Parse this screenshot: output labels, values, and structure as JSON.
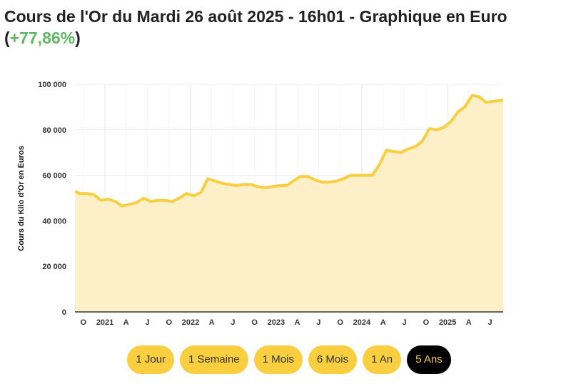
{
  "header": {
    "title": "Cours de l'Or du Mardi 26 août 2025 - 16h01 - Graphique en Euro",
    "change_open": "(",
    "change": "+77,86%",
    "change_close": ")"
  },
  "chart_data": {
    "type": "area",
    "title": "",
    "xlabel": "",
    "ylabel": "Cours du Kilo d'Or en Euros",
    "ylim": [
      0,
      100000
    ],
    "xlim": [
      "2020-08-26",
      "2025-08-26"
    ],
    "grid": true,
    "colors": {
      "line": "#f9cf40",
      "fill": "#fdf0c8"
    },
    "y_ticks": [
      "0",
      "20 000",
      "40 000",
      "60 000",
      "80 000",
      "100 000"
    ],
    "x_ticks": [
      {
        "label": "O",
        "date": "2020-10-01"
      },
      {
        "label": "2021",
        "date": "2021-01-01"
      },
      {
        "label": "A",
        "date": "2021-04-01"
      },
      {
        "label": "J",
        "date": "2021-07-01"
      },
      {
        "label": "O",
        "date": "2021-10-01"
      },
      {
        "label": "2022",
        "date": "2022-01-01"
      },
      {
        "label": "A",
        "date": "2022-04-01"
      },
      {
        "label": "J",
        "date": "2022-07-01"
      },
      {
        "label": "O",
        "date": "2022-10-01"
      },
      {
        "label": "2023",
        "date": "2023-01-01"
      },
      {
        "label": "A",
        "date": "2023-04-01"
      },
      {
        "label": "J",
        "date": "2023-07-01"
      },
      {
        "label": "O",
        "date": "2023-10-01"
      },
      {
        "label": "2024",
        "date": "2024-01-01"
      },
      {
        "label": "A",
        "date": "2024-04-01"
      },
      {
        "label": "J",
        "date": "2024-07-01"
      },
      {
        "label": "O",
        "date": "2024-10-01"
      },
      {
        "label": "2025",
        "date": "2025-01-01"
      },
      {
        "label": "A",
        "date": "2025-04-01"
      },
      {
        "label": "J",
        "date": "2025-07-01"
      }
    ],
    "series": [
      {
        "x": [
          "2020-08",
          "2020-09",
          "2020-10",
          "2020-11",
          "2020-12",
          "2021-01",
          "2021-02",
          "2021-03",
          "2021-04",
          "2021-05",
          "2021-06",
          "2021-07",
          "2021-08",
          "2021-09",
          "2021-10",
          "2021-11",
          "2021-12",
          "2022-01",
          "2022-02",
          "2022-03",
          "2022-04",
          "2022-05",
          "2022-06",
          "2022-07",
          "2022-08",
          "2022-09",
          "2022-10",
          "2022-11",
          "2022-12",
          "2023-01",
          "2023-02",
          "2023-03",
          "2023-04",
          "2023-05",
          "2023-06",
          "2023-07",
          "2023-08",
          "2023-09",
          "2023-10",
          "2023-11",
          "2023-12",
          "2024-01",
          "2024-02",
          "2024-03",
          "2024-04",
          "2024-05",
          "2024-06",
          "2024-07",
          "2024-08",
          "2024-09",
          "2024-10",
          "2024-11",
          "2024-12",
          "2025-01",
          "2025-02",
          "2025-03",
          "2025-04",
          "2025-05",
          "2025-06",
          "2025-07",
          "2025-08"
        ],
        "values": [
          53000,
          52000,
          52000,
          51500,
          49000,
          49500,
          48500,
          46500,
          47200,
          48000,
          50000,
          48500,
          49000,
          49000,
          48500,
          50000,
          52000,
          51000,
          52500,
          58500,
          57500,
          56500,
          56000,
          55500,
          56000,
          56000,
          55000,
          54500,
          55000,
          55500,
          55500,
          57500,
          59500,
          59500,
          58000,
          57000,
          57000,
          57500,
          58500,
          60000,
          60000,
          60000,
          60000,
          64500,
          71000,
          70500,
          70000,
          71500,
          72500,
          75000,
          80500,
          80000,
          81000,
          83500,
          88000,
          90000,
          95000,
          94500,
          92000,
          92500,
          93000
        ]
      }
    ]
  },
  "range_buttons": [
    {
      "label": "1 Jour"
    },
    {
      "label": "1 Semaine"
    },
    {
      "label": "1 Mois"
    },
    {
      "label": "6 Mois"
    },
    {
      "label": "1 An"
    },
    {
      "label": "5 Ans",
      "active": true
    }
  ]
}
